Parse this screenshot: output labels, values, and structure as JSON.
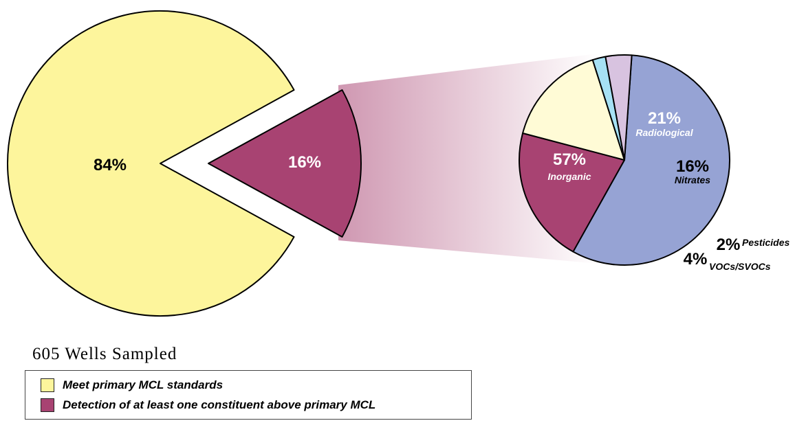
{
  "chart_data": [
    {
      "type": "pie",
      "slices": [
        {
          "label": "84%",
          "value": 84,
          "color": "#fdf59c"
        },
        {
          "label": "16%",
          "value": 16,
          "color": "#a84372"
        }
      ]
    },
    {
      "type": "pie",
      "slices": [
        {
          "label": "57%",
          "category": "Inorganic",
          "value": 57,
          "color": "#96a3d4"
        },
        {
          "label": "21%",
          "category": "Radiological",
          "value": 21,
          "color": "#a84372"
        },
        {
          "label": "16%",
          "category": "Nitrates",
          "value": 16,
          "color": "#fffbd6"
        },
        {
          "label": "2%",
          "category": "Pesticides",
          "value": 2,
          "color": "#a6e1f4"
        },
        {
          "label": "4%",
          "category": "VOCs/SVOCs",
          "value": 4,
          "color": "#d8c3e0"
        }
      ]
    }
  ],
  "caption": "605 Wells Sampled",
  "legend": [
    {
      "label": "Meet primary MCL standards",
      "color": "#fdf59c"
    },
    {
      "label": "Detection of at least one constituent above primary MCL",
      "color": "#a84372"
    }
  ]
}
